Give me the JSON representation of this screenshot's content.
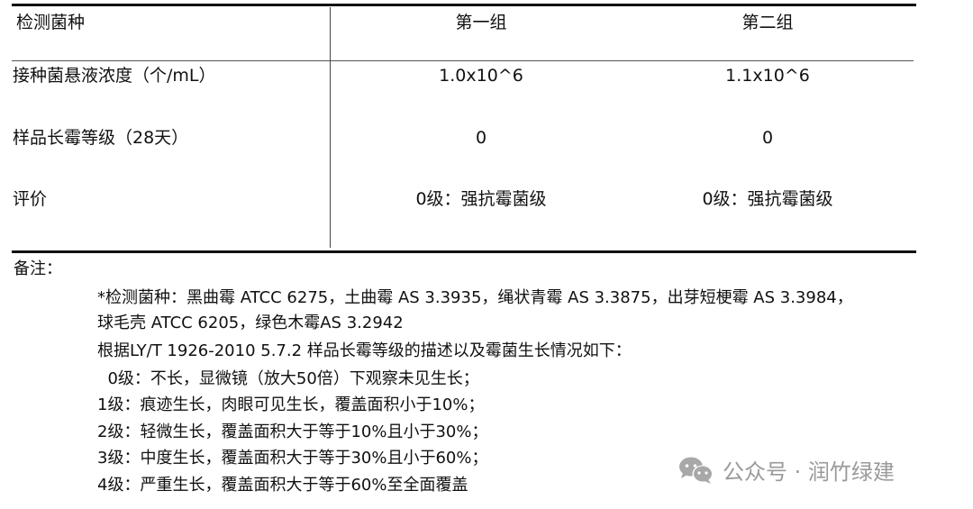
{
  "table": {
    "headers": [
      "检测菌种",
      "第一组",
      "第二组"
    ],
    "rows": [
      {
        "label": "接种菌悬液浓度（个/mL）",
        "group1": "1.0x10^6",
        "group2": "1.1x10^6"
      },
      {
        "label": "样品长霉等级（28天）",
        "group1": "0",
        "group2": "0"
      },
      {
        "label": "评价",
        "group1": "0级：强抗霉菌级",
        "group2": "0级：强抗霉菌级"
      }
    ]
  },
  "notes": {
    "title": "备注：",
    "lines": [
      "*检测菌种：黑曲霉 ATCC 6275，土曲霉 AS 3.3935，绳状青霉 AS 3.3875，出芽短梗霉 AS 3.3984，",
      "球毛壳 ATCC 6205，绿色木霉AS 3.2942",
      "根据LY/T 1926-2010 5.7.2 样品长霉等级的描述以及霉菌生长情况如下：",
      "  0级：不长，显微镜（放大50倍）下观察未见生长；",
      "1级：痕迹生长，肉眼可见生长，覆盖面积小于10%；",
      "2级：轻微生长，覆盖面积大于等于10%且小于30%；",
      "3级：中度生长，覆盖面积大于等于30%且小于60%；",
      "4级：严重生长，覆盖面积大于等于60%至全面覆盖"
    ]
  },
  "watermark": {
    "icon": "wechat-icon",
    "text": "公众号 · 润竹绿建"
  }
}
